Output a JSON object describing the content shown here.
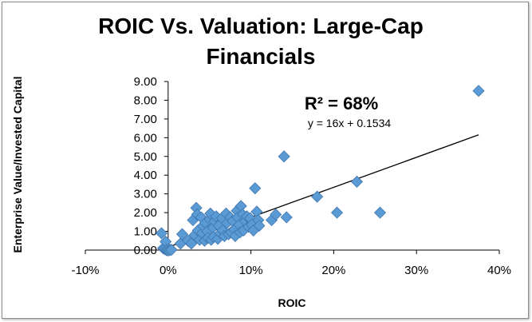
{
  "chart_data": {
    "type": "scatter",
    "title_line1": "ROIC Vs. Valuation: Large-Cap",
    "title_line2": "Financials",
    "xlabel": "ROIC",
    "ylabel": "Enterprise Value/Invested Capital",
    "xlim": [
      -0.1,
      0.4
    ],
    "ylim": [
      0,
      9
    ],
    "x_ticks": [
      -0.1,
      0,
      0.1,
      0.2,
      0.3,
      0.4
    ],
    "x_tick_labels": [
      "-10%",
      "0%",
      "10%",
      "20%",
      "30%",
      "40%"
    ],
    "y_ticks": [
      0,
      1,
      2,
      3,
      4,
      5,
      6,
      7,
      8,
      9
    ],
    "y_tick_labels": [
      "0.00",
      "1.00",
      "2.00",
      "3.00",
      "4.00",
      "5.00",
      "6.00",
      "7.00",
      "8.00",
      "9.00"
    ],
    "r_squared_label": "R² = 68%",
    "equation_label": "y = 16x + 0.1534",
    "trendline": {
      "slope": 16,
      "intercept": 0.1534,
      "x_range": [
        0,
        0.375
      ]
    },
    "marker_color": "#5b9bd5",
    "series": [
      {
        "color": "#5b9bd5",
        "points": [
          [
            -0.008,
            0.9
          ],
          [
            -0.006,
            0.1
          ],
          [
            -0.004,
            0.05
          ],
          [
            -0.003,
            0.45
          ],
          [
            -0.002,
            0.0
          ],
          [
            0.0,
            -0.02
          ],
          [
            0.001,
            0.05
          ],
          [
            0.002,
            0.0
          ],
          [
            0.004,
            0.02
          ],
          [
            0.015,
            0.35
          ],
          [
            0.017,
            0.85
          ],
          [
            0.024,
            0.5
          ],
          [
            0.028,
            0.35
          ],
          [
            0.03,
            1.6
          ],
          [
            0.032,
            0.8
          ],
          [
            0.034,
            2.25
          ],
          [
            0.035,
            1.9
          ],
          [
            0.036,
            1.05
          ],
          [
            0.038,
            0.55
          ],
          [
            0.04,
            1.75
          ],
          [
            0.041,
            0.9
          ],
          [
            0.042,
            1.3
          ],
          [
            0.044,
            0.5
          ],
          [
            0.045,
            1.45
          ],
          [
            0.047,
            1.0
          ],
          [
            0.048,
            0.65
          ],
          [
            0.05,
            1.65
          ],
          [
            0.051,
            1.95
          ],
          [
            0.052,
            0.55
          ],
          [
            0.054,
            1.2
          ],
          [
            0.055,
            0.7
          ],
          [
            0.056,
            1.55
          ],
          [
            0.058,
            1.8
          ],
          [
            0.06,
            0.6
          ],
          [
            0.061,
            1.3
          ],
          [
            0.063,
            0.9
          ],
          [
            0.065,
            1.7
          ],
          [
            0.066,
            1.05
          ],
          [
            0.068,
            0.75
          ],
          [
            0.07,
            1.95
          ],
          [
            0.071,
            1.45
          ],
          [
            0.073,
            0.85
          ],
          [
            0.075,
            1.75
          ],
          [
            0.076,
            0.95
          ],
          [
            0.078,
            1.55
          ],
          [
            0.08,
            1.1
          ],
          [
            0.081,
            0.75
          ],
          [
            0.083,
            2.1
          ],
          [
            0.084,
            1.75
          ],
          [
            0.086,
            1.35
          ],
          [
            0.087,
            0.95
          ],
          [
            0.088,
            2.35
          ],
          [
            0.09,
            1.9
          ],
          [
            0.091,
            1.05
          ],
          [
            0.093,
            1.55
          ],
          [
            0.095,
            1.8
          ],
          [
            0.097,
            1.25
          ],
          [
            0.099,
            1.7
          ],
          [
            0.101,
            1.35
          ],
          [
            0.103,
            1.05
          ],
          [
            0.105,
            3.3
          ],
          [
            0.107,
            2.05
          ],
          [
            0.109,
            1.6
          ],
          [
            0.11,
            1.3
          ],
          [
            0.125,
            1.6
          ],
          [
            0.13,
            1.9
          ],
          [
            0.14,
            5.0
          ],
          [
            0.143,
            1.75
          ],
          [
            0.18,
            2.85
          ],
          [
            0.204,
            2.0
          ],
          [
            0.228,
            3.65
          ],
          [
            0.256,
            2.0
          ],
          [
            0.375,
            8.5
          ]
        ]
      }
    ]
  }
}
